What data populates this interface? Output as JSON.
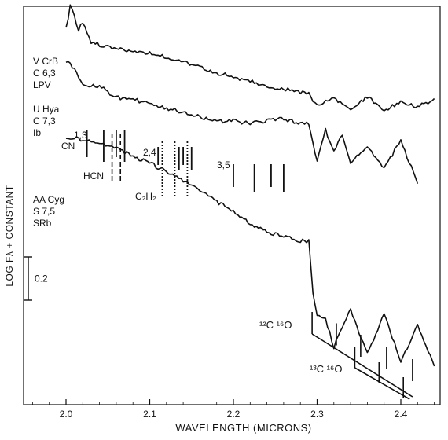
{
  "chart_data": {
    "type": "line",
    "xlabel": "WAVELENGTH (MICRONS)",
    "ylabel": "LOG Fλ + CONSTANT",
    "xlim": [
      1.95,
      2.45
    ],
    "xticks": [
      "2.0",
      "2.1",
      "2.2",
      "2.3",
      "2.4"
    ],
    "xtick_values": [
      2.0,
      2.1,
      2.2,
      2.3,
      2.4
    ],
    "scale_bar": {
      "label": "0.2",
      "value": 0.2
    },
    "series": [
      {
        "name": "V CrB",
        "labels": [
          "V CrB",
          "C 6,3",
          "LPV"
        ],
        "x": [
          2.0,
          2.005,
          2.01,
          2.015,
          2.02,
          2.03,
          2.05,
          2.08,
          2.1,
          2.12,
          2.15,
          2.18,
          2.2,
          2.22,
          2.25,
          2.27,
          2.29,
          2.3,
          2.32,
          2.34,
          2.36,
          2.38,
          2.4,
          2.42,
          2.44
        ],
        "y": [
          0.3,
          0.41,
          0.36,
          0.3,
          0.33,
          0.24,
          0.22,
          0.2,
          0.19,
          0.17,
          0.14,
          0.1,
          0.08,
          0.06,
          0.03,
          0.02,
          0.0,
          -0.05,
          -0.02,
          -0.07,
          -0.01,
          -0.08,
          -0.03,
          -0.06,
          -0.02
        ]
      },
      {
        "name": "U Hya",
        "labels": [
          "U Hya",
          "C 7,3",
          "Ib"
        ],
        "x": [
          2.0,
          2.01,
          2.02,
          2.04,
          2.06,
          2.08,
          2.1,
          2.12,
          2.14,
          2.16,
          2.18,
          2.2,
          2.22,
          2.24,
          2.26,
          2.28,
          2.29,
          2.3,
          2.31,
          2.32,
          2.33,
          2.34,
          2.36,
          2.38,
          2.4,
          2.42
        ],
        "y": [
          0.32,
          0.28,
          0.21,
          0.2,
          0.15,
          0.14,
          0.12,
          0.1,
          0.08,
          0.06,
          0.04,
          0.04,
          0.03,
          0.04,
          0.05,
          0.03,
          0.03,
          -0.15,
          0.0,
          -0.1,
          -0.02,
          -0.15,
          -0.08,
          -0.18,
          -0.05,
          -0.25
        ]
      },
      {
        "name": "AA Cyg",
        "labels": [
          "AA Cyg",
          "S 7,5",
          "SRb"
        ],
        "x": [
          2.0,
          2.02,
          2.04,
          2.06,
          2.08,
          2.1,
          2.12,
          2.14,
          2.16,
          2.18,
          2.2,
          2.22,
          2.24,
          2.26,
          2.28,
          2.29,
          2.295,
          2.3,
          2.31,
          2.32,
          2.34,
          2.36,
          2.38,
          2.4,
          2.42,
          2.44
        ],
        "y": [
          0.42,
          0.41,
          0.39,
          0.37,
          0.33,
          0.3,
          0.26,
          0.22,
          0.17,
          0.12,
          0.08,
          0.02,
          -0.02,
          -0.04,
          -0.06,
          -0.06,
          -0.3,
          -0.4,
          -0.42,
          -0.55,
          -0.38,
          -0.58,
          -0.4,
          -0.62,
          -0.45,
          -0.64
        ]
      }
    ],
    "annotations": {
      "cn": {
        "label": "CN",
        "bands": [
          {
            "label": "1,3",
            "x": [
              2.025,
              2.045,
              2.06,
              2.07
            ]
          },
          {
            "label": "2,4",
            "x": [
              2.11,
              2.135,
              2.14,
              2.15
            ]
          },
          {
            "label": "3,5",
            "x": [
              2.2,
              2.225,
              2.245,
              2.26
            ]
          }
        ]
      },
      "hcn": {
        "label": "HCN",
        "x": [
          2.055,
          2.065
        ]
      },
      "c2h2": {
        "label": "C₂H₂",
        "x": [
          2.115,
          2.13,
          2.145
        ]
      },
      "co12": {
        "label": "¹²C ¹⁶O",
        "x": [
          2.294,
          2.323,
          2.352,
          2.383,
          2.414
        ]
      },
      "co13": {
        "label": "¹³C ¹⁶O",
        "x": [
          2.345,
          2.374,
          2.403
        ]
      }
    }
  }
}
